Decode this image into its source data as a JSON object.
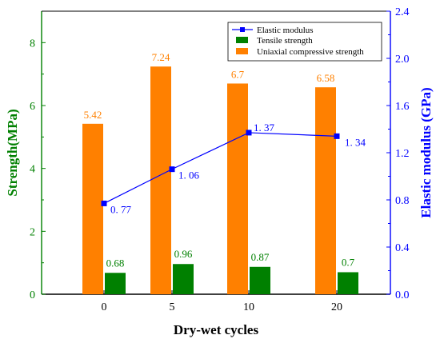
{
  "chart_data": {
    "type": "bar",
    "xlabel": "Dry-wet cycles",
    "ylabel_left": "Strength(MPa)",
    "ylabel_right": "Elastic modulus (GPa)",
    "categories": [
      "0",
      "5",
      "10",
      "20"
    ],
    "ylim_left": [
      0,
      9
    ],
    "yticks_left": [
      0,
      2,
      4,
      6,
      8
    ],
    "ylim_right": [
      0,
      2.4
    ],
    "yticks_right": [
      "0.0",
      "0.4",
      "0.8",
      "1.2",
      "1.6",
      "2.0",
      "2.4"
    ],
    "legend_position": "top-right",
    "series": [
      {
        "name": "Uniaxial compressive strength",
        "kind": "bar",
        "axis": "left",
        "color": "#ff8000",
        "values": [
          5.42,
          7.24,
          6.7,
          6.58
        ],
        "labels": [
          "5.42",
          "7.24",
          "6.7",
          "6.58"
        ]
      },
      {
        "name": "Tensile strength",
        "kind": "bar",
        "axis": "left",
        "color": "#008000",
        "values": [
          0.68,
          0.96,
          0.87,
          0.7
        ],
        "labels": [
          "0.68",
          "0.96",
          "0.87",
          "0.7"
        ]
      },
      {
        "name": "Elastic modulus",
        "kind": "line",
        "axis": "right",
        "color": "#0000ff",
        "values": [
          0.77,
          1.06,
          1.37,
          1.34
        ],
        "labels": [
          "0. 77",
          "1. 06",
          "1. 37",
          "1. 34"
        ]
      }
    ],
    "legend_order": [
      "Elastic modulus",
      "Tensile strength",
      "Uniaxial compressive strength"
    ]
  }
}
